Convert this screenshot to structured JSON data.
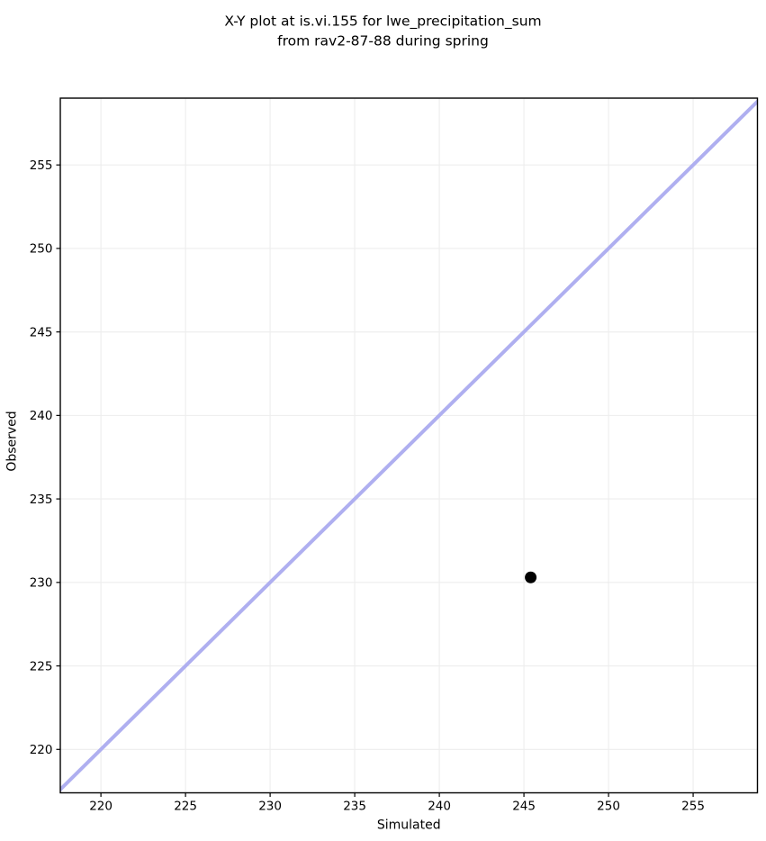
{
  "title": {
    "line1": "X-Y plot at is.vi.155 for lwe_precipitation_sum",
    "line2": "from rav2-87-88 during spring"
  },
  "chart_data": {
    "type": "scatter",
    "title": "X-Y plot at is.vi.155 for lwe_precipitation_sum\nfrom rav2-87-88 during spring",
    "xlabel": "Simulated",
    "ylabel": "Observed",
    "xlim": [
      217.6,
      258.8
    ],
    "ylim": [
      217.4,
      259.0
    ],
    "xticks": [
      220,
      225,
      230,
      235,
      240,
      245,
      250,
      255
    ],
    "yticks": [
      220,
      225,
      230,
      235,
      240,
      245,
      250,
      255
    ],
    "grid": true,
    "series": [
      {
        "name": "identity-line",
        "kind": "line",
        "points": [
          [
            217.4,
            217.4
          ],
          [
            259.0,
            259.0
          ]
        ],
        "color": "#afaff0",
        "width": 4
      },
      {
        "name": "observation-point",
        "kind": "scatter",
        "points": [
          [
            245.4,
            230.3
          ]
        ],
        "color": "#000000",
        "marker_radius": 6.5
      }
    ]
  },
  "colors": {
    "background": "#ffffff",
    "grid": "#ededed",
    "spine": "#000000",
    "text": "#000000",
    "line": "#afaff0",
    "point": "#000000"
  }
}
